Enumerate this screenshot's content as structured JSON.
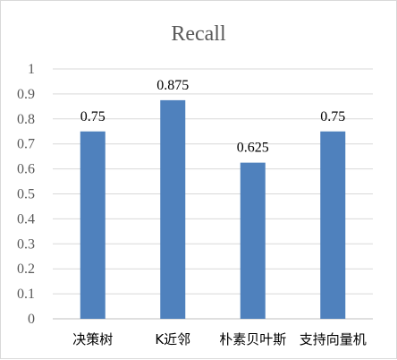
{
  "chart_data": {
    "type": "bar",
    "title": "Recall",
    "categories": [
      "决策树",
      "K近邻",
      "朴素贝叶斯",
      "支持向量机"
    ],
    "values": [
      0.75,
      0.875,
      0.625,
      0.75
    ],
    "data_labels": [
      "0.75",
      "0.875",
      "0.625",
      "0.75"
    ],
    "ylim": [
      0,
      1
    ],
    "yticks": [
      "0",
      "0.1",
      "0.2",
      "0.3",
      "0.4",
      "0.5",
      "0.6",
      "0.7",
      "0.8",
      "0.9",
      "1"
    ],
    "grid": true,
    "legend": "none",
    "bar_color": "#4f81bd"
  }
}
